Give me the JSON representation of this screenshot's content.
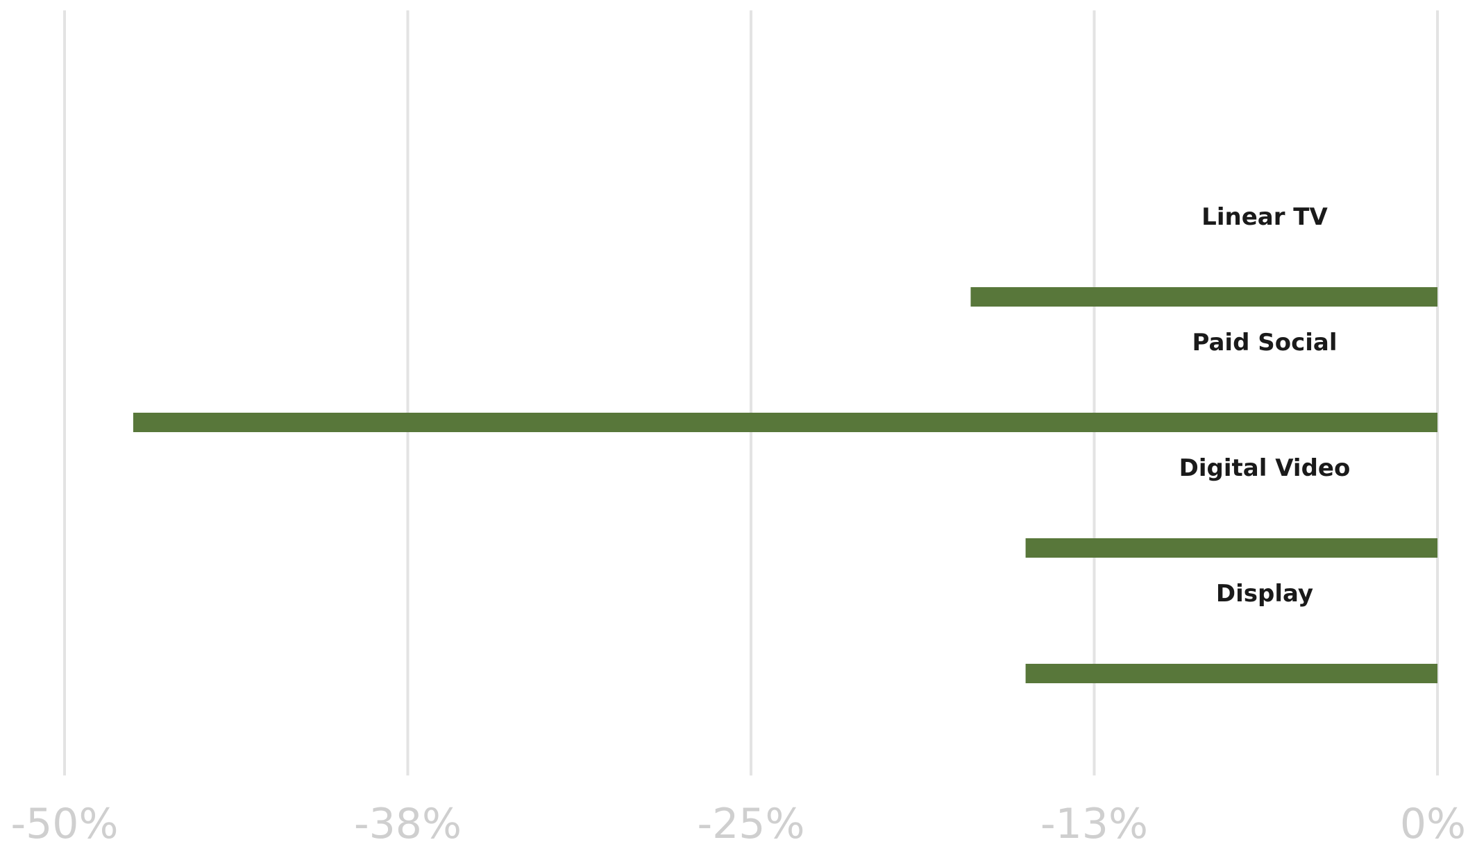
{
  "chart_data": {
    "type": "bar",
    "orientation": "horizontal",
    "categories": [
      "Linear TV",
      "Paid Social",
      "Digital Video",
      "Display"
    ],
    "values": [
      -17,
      -47.5,
      -15,
      -15
    ],
    "xlim": [
      -50,
      0
    ],
    "xticks": [
      -50,
      -37.5,
      -25,
      -12.5,
      0
    ],
    "xtick_labels": [
      "-50%",
      "-38%",
      "-25%",
      "-13%",
      "0%"
    ],
    "grid": true,
    "colors": {
      "bar": "#58773a",
      "grid": "#e3e3e3"
    }
  }
}
